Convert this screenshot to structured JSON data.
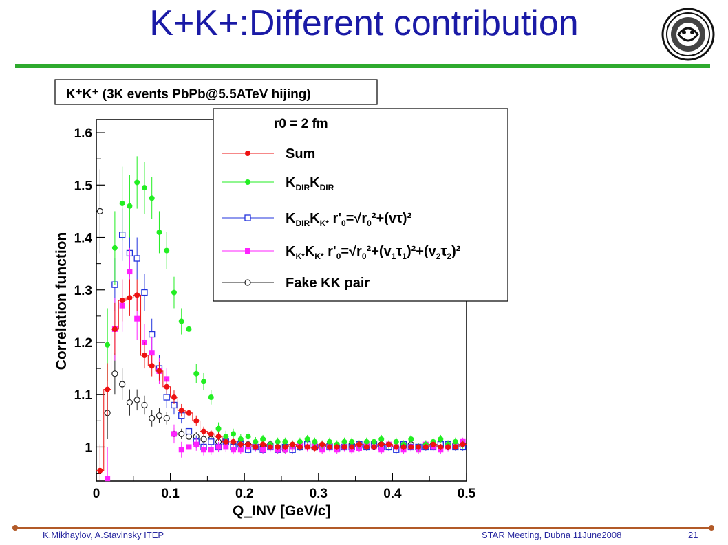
{
  "slide": {
    "title": "K+K+:Different contribution",
    "footer_left": "K.Mikhaylov, A.Stavinsky ITEP",
    "footer_center": "STAR Meeting, Dubna 11June2008",
    "page_number": "21",
    "logo_icon": "institute-emblem-icon"
  },
  "colors": {
    "title": "#1a1aa6",
    "rule": "#2eaa2e",
    "footer_line": "#b25a28",
    "footer_text": "#2a2aa0",
    "sum": "#ee1111",
    "kdir": "#22ee22",
    "kdir_kstar": "#2233dd",
    "kstar": "#ff22ff",
    "fake": "#222222"
  },
  "chart_data": {
    "type": "scatter",
    "title": "K⁺K⁺ (3K events PbPb@5.5ATeV hijing)",
    "xlabel": "Q_INV [GeV/c]",
    "ylabel": "Correlation function",
    "xlim": [
      0,
      0.5
    ],
    "ylim": [
      0.935,
      1.625
    ],
    "xticks": [
      0,
      0.1,
      0.2,
      0.3,
      0.4,
      0.5
    ],
    "xtick_labels": [
      "0",
      "0.1",
      "0.2",
      "0.3",
      "0.4",
      "0.5"
    ],
    "yticks": [
      1,
      1.1,
      1.2,
      1.3,
      1.4,
      1.5,
      1.6
    ],
    "ytick_labels": [
      "1",
      "1.1",
      "1.2",
      "1.3",
      "1.4",
      "1.5",
      "1.6"
    ],
    "grid": false,
    "legend_position": "top-right",
    "legend_header": "r0 = 2 fm",
    "series": [
      {
        "name": "Sum",
        "marker": "filled-circle",
        "x": [
          0.005,
          0.015,
          0.025,
          0.035,
          0.045,
          0.055,
          0.065,
          0.075,
          0.085,
          0.095,
          0.105,
          0.115,
          0.125,
          0.135,
          0.145,
          0.155,
          0.165,
          0.175,
          0.185,
          0.195,
          0.205,
          0.215,
          0.225,
          0.235,
          0.245,
          0.255,
          0.265,
          0.275,
          0.285,
          0.295,
          0.305,
          0.315,
          0.325,
          0.335,
          0.345,
          0.355,
          0.365,
          0.375,
          0.385,
          0.395,
          0.405,
          0.415,
          0.425,
          0.435,
          0.445,
          0.455,
          0.465,
          0.475,
          0.485,
          0.495
        ],
        "y": [
          0.955,
          1.11,
          1.225,
          1.28,
          1.285,
          1.29,
          1.175,
          1.155,
          1.145,
          1.115,
          1.095,
          1.07,
          1.065,
          1.05,
          1.03,
          1.025,
          1.02,
          1.01,
          1.01,
          1.005,
          1.005,
          1.0,
          1.005,
          1.0,
          1.0,
          1.0,
          1.005,
          1.0,
          1.0,
          0.998,
          1.005,
          1.0,
          1.0,
          1.0,
          1.0,
          1.005,
          1.0,
          1.0,
          1.005,
          1.005,
          1.0,
          1.0,
          1.0,
          1.0,
          1.0,
          1.005,
          1.0,
          1.0,
          1.0,
          1.005
        ],
        "yerr": [
          0.05,
          0.05,
          0.05,
          0.04,
          0.035,
          0.03,
          0.025,
          0.02,
          0.018,
          0.015,
          0.013,
          0.012,
          0.01,
          0.01,
          0.009,
          0.008,
          0.008,
          0.007,
          0.007,
          0.007,
          0.006,
          0.006,
          0.006,
          0.006,
          0.006,
          0.006,
          0.006,
          0.006,
          0.006,
          0.006,
          0.006,
          0.006,
          0.006,
          0.006,
          0.006,
          0.006,
          0.006,
          0.006,
          0.006,
          0.006,
          0.006,
          0.006,
          0.006,
          0.006,
          0.006,
          0.006,
          0.006,
          0.006,
          0.006,
          0.006
        ]
      },
      {
        "name": "K_DIR K_DIR",
        "marker": "filled-circle",
        "x": [
          0.015,
          0.025,
          0.035,
          0.045,
          0.055,
          0.065,
          0.075,
          0.085,
          0.095,
          0.105,
          0.115,
          0.125,
          0.135,
          0.145,
          0.155,
          0.165,
          0.175,
          0.185,
          0.195,
          0.205,
          0.215,
          0.225,
          0.235,
          0.245,
          0.255,
          0.265,
          0.275,
          0.285,
          0.295,
          0.305,
          0.315,
          0.325,
          0.335,
          0.345,
          0.355,
          0.365,
          0.375,
          0.385,
          0.395,
          0.405,
          0.415,
          0.425,
          0.435,
          0.445,
          0.455,
          0.465,
          0.475,
          0.485,
          0.495
        ],
        "y": [
          1.195,
          1.38,
          1.465,
          1.46,
          1.505,
          1.495,
          1.475,
          1.41,
          1.375,
          1.295,
          1.24,
          1.225,
          1.14,
          1.125,
          1.095,
          1.035,
          1.02,
          1.025,
          1.015,
          1.02,
          1.01,
          1.015,
          1.005,
          1.01,
          1.01,
          1.005,
          1.01,
          1.015,
          1.01,
          1.005,
          1.01,
          1.005,
          1.01,
          1.01,
          1.005,
          1.01,
          1.01,
          1.015,
          1.005,
          1.01,
          1.005,
          1.015,
          1.0,
          1.005,
          1.01,
          1.015,
          1.005,
          1.01,
          1.005
        ],
        "yerr": [
          0.07,
          0.07,
          0.07,
          0.06,
          0.05,
          0.05,
          0.04,
          0.04,
          0.035,
          0.03,
          0.025,
          0.02,
          0.018,
          0.016,
          0.014,
          0.012,
          0.011,
          0.01,
          0.01,
          0.009,
          0.009,
          0.008,
          0.008,
          0.008,
          0.008,
          0.008,
          0.008,
          0.008,
          0.008,
          0.008,
          0.008,
          0.008,
          0.008,
          0.008,
          0.008,
          0.008,
          0.008,
          0.008,
          0.008,
          0.008,
          0.008,
          0.008,
          0.008,
          0.008,
          0.008,
          0.008,
          0.008,
          0.008,
          0.008
        ]
      },
      {
        "name": "K_DIR K_K* r'0=sqrt(r0²+(vτ)²)",
        "marker": "open-square",
        "x": [
          0.025,
          0.035,
          0.045,
          0.055,
          0.065,
          0.075,
          0.085,
          0.095,
          0.105,
          0.115,
          0.125,
          0.135,
          0.145,
          0.155,
          0.165,
          0.175,
          0.185,
          0.195,
          0.205,
          0.215,
          0.225,
          0.235,
          0.245,
          0.255,
          0.265,
          0.275,
          0.285,
          0.295,
          0.305,
          0.315,
          0.325,
          0.335,
          0.345,
          0.355,
          0.365,
          0.375,
          0.385,
          0.395,
          0.405,
          0.415,
          0.425,
          0.435,
          0.445,
          0.455,
          0.465,
          0.475,
          0.485,
          0.495
        ],
        "y": [
          1.31,
          1.405,
          1.37,
          1.36,
          1.295,
          1.215,
          1.15,
          1.095,
          1.08,
          1.06,
          1.03,
          1.01,
          1.0,
          1.01,
          1.0,
          1.01,
          1.0,
          1.005,
          0.995,
          1.0,
          0.995,
          1.0,
          0.995,
          1.0,
          0.995,
          1.0,
          1.005,
          1.0,
          1.0,
          1.0,
          0.998,
          1.0,
          1.0,
          1.005,
          1.0,
          1.005,
          1.0,
          1.0,
          0.995,
          1.005,
          1.0,
          1.0,
          1.0,
          1.0,
          1.005,
          1.005,
          1.0,
          1.0
        ],
        "yerr": [
          0.05,
          0.05,
          0.045,
          0.04,
          0.035,
          0.03,
          0.025,
          0.02,
          0.018,
          0.015,
          0.013,
          0.012,
          0.01,
          0.01,
          0.009,
          0.009,
          0.008,
          0.008,
          0.008,
          0.007,
          0.007,
          0.007,
          0.007,
          0.007,
          0.007,
          0.007,
          0.007,
          0.007,
          0.007,
          0.007,
          0.007,
          0.007,
          0.007,
          0.007,
          0.007,
          0.007,
          0.007,
          0.007,
          0.007,
          0.007,
          0.007,
          0.007,
          0.007,
          0.007,
          0.007,
          0.007,
          0.007,
          0.007
        ]
      },
      {
        "name": "K_K* K_K* r'0=sqrt(r0²+(v1τ1)²+(v2τ2)²)",
        "marker": "filled-square",
        "x": [
          0.015,
          0.025,
          0.035,
          0.045,
          0.055,
          0.065,
          0.075,
          0.085,
          0.095,
          0.105,
          0.115,
          0.125,
          0.135,
          0.145,
          0.155,
          0.165,
          0.175,
          0.185,
          0.195,
          0.205,
          0.215,
          0.225,
          0.235,
          0.245,
          0.255,
          0.265,
          0.275,
          0.285,
          0.295,
          0.305,
          0.315,
          0.325,
          0.335,
          0.345,
          0.355,
          0.365,
          0.375,
          0.385,
          0.395,
          0.405,
          0.415,
          0.425,
          0.435,
          0.445,
          0.455,
          0.465,
          0.475,
          0.485,
          0.495
        ],
        "y": [
          0.94,
          1.225,
          1.27,
          1.335,
          1.245,
          1.2,
          1.18,
          1.145,
          1.13,
          1.025,
          0.995,
          1.0,
          1.005,
          0.995,
          0.995,
          1.0,
          1.0,
          0.995,
          0.995,
          1.0,
          1.0,
          0.995,
          1.0,
          0.995,
          0.995,
          1.0,
          1.005,
          1.0,
          1.005,
          0.995,
          1.0,
          0.995,
          1.0,
          0.995,
          0.998,
          1.005,
          1.0,
          0.995,
          1.005,
          1.0,
          0.995,
          1.0,
          0.995,
          1.005,
          1.0,
          0.995,
          1.0,
          1.005,
          1.01
        ],
        "yerr": [
          0.06,
          0.06,
          0.05,
          0.045,
          0.04,
          0.035,
          0.03,
          0.025,
          0.02,
          0.018,
          0.015,
          0.013,
          0.012,
          0.011,
          0.01,
          0.01,
          0.009,
          0.009,
          0.008,
          0.008,
          0.008,
          0.008,
          0.008,
          0.008,
          0.008,
          0.008,
          0.008,
          0.008,
          0.008,
          0.008,
          0.008,
          0.008,
          0.008,
          0.008,
          0.008,
          0.008,
          0.008,
          0.008,
          0.008,
          0.008,
          0.008,
          0.008,
          0.008,
          0.008,
          0.008,
          0.008,
          0.008,
          0.008,
          0.008
        ]
      },
      {
        "name": "Fake KK pair",
        "marker": "open-circle",
        "x": [
          0.005,
          0.015,
          0.025,
          0.035,
          0.045,
          0.055,
          0.065,
          0.075,
          0.085,
          0.095,
          0.105,
          0.115,
          0.125,
          0.135,
          0.145,
          0.155,
          0.165,
          0.175,
          0.185,
          0.195,
          0.205,
          0.215,
          0.225,
          0.235,
          0.245,
          0.255,
          0.265,
          0.275,
          0.285,
          0.295,
          0.305,
          0.315,
          0.325,
          0.335,
          0.345,
          0.355,
          0.365,
          0.375,
          0.385,
          0.395,
          0.405,
          0.415,
          0.425,
          0.435,
          0.445,
          0.455,
          0.465,
          0.475,
          0.485,
          0.495
        ],
        "y": [
          1.45,
          1.065,
          1.14,
          1.12,
          1.085,
          1.09,
          1.08,
          1.055,
          1.06,
          1.055,
          1.025,
          1.025,
          1.02,
          1.02,
          1.015,
          1.015,
          1.01,
          1.01,
          1.005,
          1.01,
          1.005,
          1.0,
          1.0,
          1.005,
          1.0,
          0.995,
          1.0,
          1.0,
          1.005,
          1.0,
          1.0,
          1.005,
          1.0,
          1.0,
          1.005,
          1.0,
          1.0,
          1.0,
          1.005,
          1.0,
          1.0,
          1.0,
          1.005,
          1.0,
          1.0,
          1.005,
          1.0,
          1.0,
          1.005,
          1.005
        ],
        "yerr": [
          0.08,
          0.05,
          0.04,
          0.03,
          0.025,
          0.02,
          0.018,
          0.016,
          0.014,
          0.012,
          0.011,
          0.01,
          0.009,
          0.009,
          0.008,
          0.008,
          0.008,
          0.007,
          0.007,
          0.007,
          0.007,
          0.006,
          0.006,
          0.006,
          0.006,
          0.006,
          0.006,
          0.006,
          0.006,
          0.006,
          0.006,
          0.006,
          0.006,
          0.006,
          0.006,
          0.006,
          0.006,
          0.006,
          0.006,
          0.006,
          0.006,
          0.006,
          0.006,
          0.006,
          0.006,
          0.006,
          0.006,
          0.006,
          0.006,
          0.006
        ]
      }
    ]
  }
}
